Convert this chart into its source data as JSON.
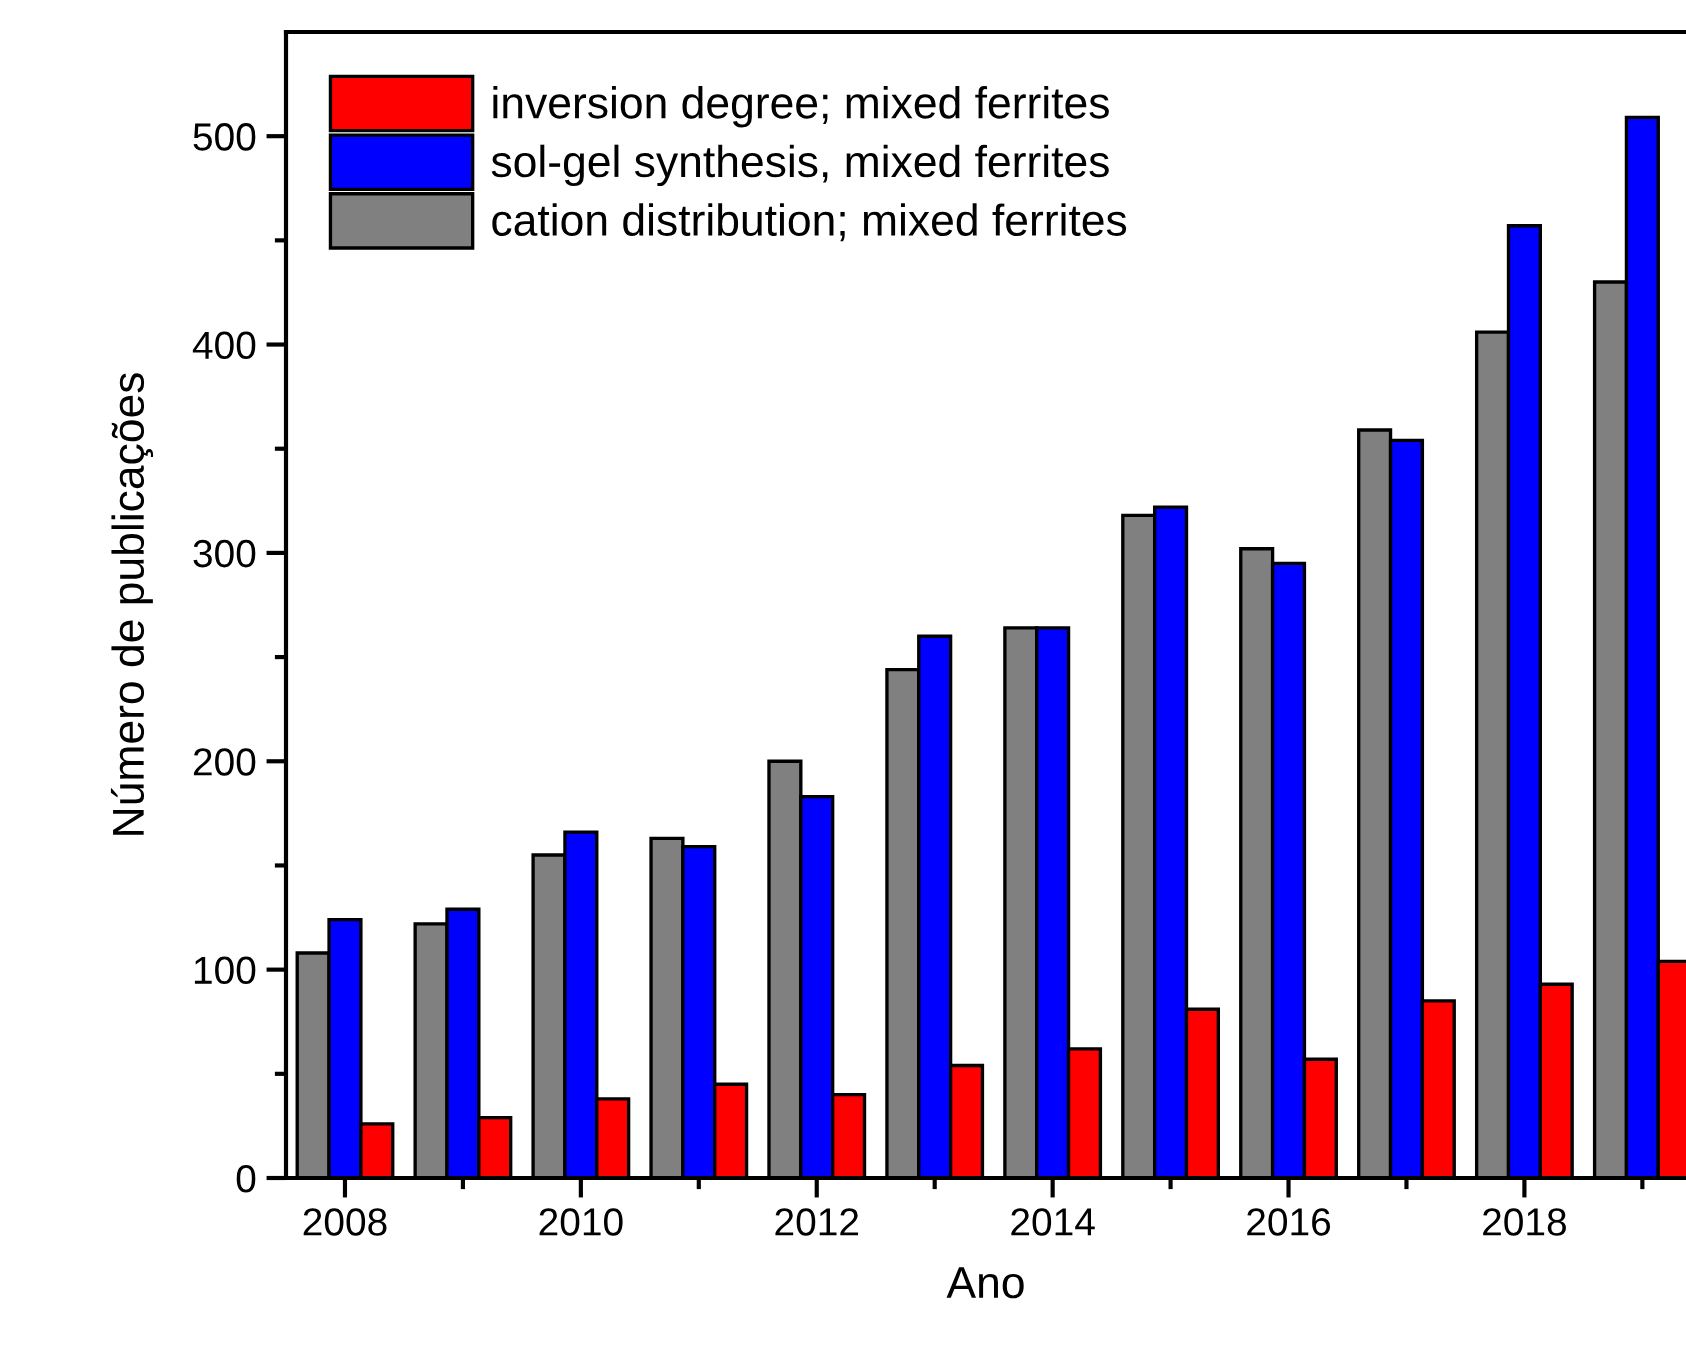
{
  "chart_data": {
    "type": "bar",
    "xlabel": "Ano",
    "ylabel": "Número de publicações",
    "x": [
      2008,
      2009,
      2010,
      2011,
      2012,
      2013,
      2014,
      2015,
      2016,
      2017,
      2018,
      2019
    ],
    "series": [
      {
        "name": "cation distribution; mixed ferrites",
        "color": "#808080",
        "values": [
          108,
          122,
          155,
          163,
          200,
          244,
          264,
          318,
          302,
          359,
          406,
          430
        ]
      },
      {
        "name": "sol-gel synthesis, mixed ferrites",
        "color": "#0000ff",
        "values": [
          124,
          129,
          166,
          159,
          183,
          260,
          264,
          322,
          295,
          354,
          457,
          509
        ]
      },
      {
        "name": "inversion degree; mixed ferrites",
        "color": "#ff0000",
        "values": [
          26,
          29,
          38,
          45,
          40,
          54,
          62,
          81,
          57,
          85,
          93,
          104
        ]
      }
    ],
    "xlim": [
      2007.5,
      2019.37
    ],
    "ylim": [
      0,
      550
    ],
    "xticks": [
      2008,
      {
        "value": 2009,
        "label": null
      },
      2010,
      {
        "value": 2011,
        "label": null
      },
      2012,
      {
        "value": 2013,
        "label": null
      },
      2014,
      {
        "value": 2015,
        "label": null
      },
      2016,
      {
        "value": 2017,
        "label": null
      },
      2018,
      {
        "value": 2019,
        "label": null
      }
    ],
    "yticks": [
      0,
      {
        "value": 50,
        "label": null
      },
      100,
      {
        "value": 150,
        "label": null
      },
      200,
      {
        "value": 250,
        "label": null
      },
      300,
      {
        "value": 350,
        "label": null
      },
      400,
      {
        "value": 450,
        "label": null
      },
      500
    ],
    "legend": "top left",
    "grid": false
  }
}
